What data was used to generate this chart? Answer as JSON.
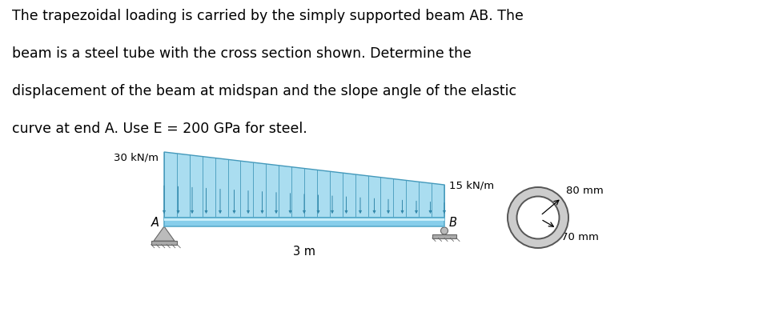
{
  "text_lines": [
    "The trapezoidal loading is carried by the simply supported beam AB. The",
    "beam is a steel tube with the cross section shown. Determine the",
    "displacement of the beam at midspan and the slope angle of the elastic",
    "curve at end A. Use E = 200 GPa for steel."
  ],
  "label_30": "30 kN/m",
  "label_15": "15 kN/m",
  "label_A": "A",
  "label_B": "B",
  "label_3m": "3 m",
  "label_80mm": "80 mm",
  "label_70mm": "70 mm",
  "beam_color_fill": "#87CEEB",
  "beam_color_edge": "#5AACCC",
  "beam_color_highlight": "#C8EEFA",
  "load_fill": "#AADDF0",
  "load_edge": "#4499BB",
  "load_arrow": "#3388AA",
  "support_fill": "#BBBBBB",
  "support_edge": "#666666",
  "support_base_fill": "#AAAAAA",
  "circle_fill": "#CCCCCC",
  "circle_edge": "#555555",
  "background": "#FFFFFF",
  "text_color": "#000000",
  "font_size_para": 12.5,
  "font_size_label": 9.5,
  "font_size_AB": 10.5,
  "n_load_lines": 22
}
